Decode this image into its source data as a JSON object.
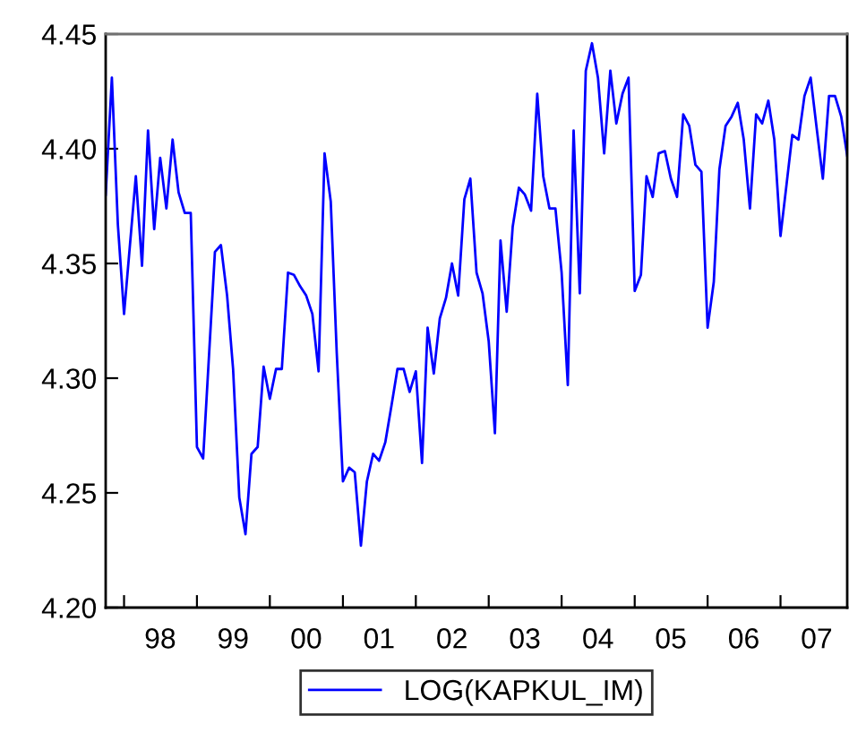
{
  "chart_data": {
    "type": "line",
    "x": [
      "1997-10",
      "1997-11",
      "1997-12",
      "1998-01",
      "1998-03",
      "1998-04",
      "1998-05",
      "1998-06",
      "1998-07",
      "1998-08",
      "1998-09",
      "1998-10",
      "1998-11",
      "1998-12",
      "1999-01",
      "1999-02",
      "1999-04",
      "1999-05",
      "1999-06",
      "1999-07",
      "1999-08",
      "1999-09",
      "1999-10",
      "1999-11",
      "1999-12",
      "2000-01",
      "2000-02",
      "2000-03",
      "2000-04",
      "2000-05",
      "2000-06",
      "2000-07",
      "2000-08",
      "2000-09",
      "2000-10",
      "2000-11",
      "2000-12",
      "2001-01",
      "2001-02",
      "2001-03",
      "2001-04",
      "2001-05",
      "2001-06",
      "2001-07",
      "2001-08",
      "2001-09",
      "2001-10",
      "2001-11",
      "2001-12",
      "2002-01",
      "2002-02",
      "2002-03",
      "2002-04",
      "2002-05",
      "2002-06",
      "2002-07",
      "2002-08",
      "2002-09",
      "2002-10",
      "2002-11",
      "2002-12",
      "2003-01",
      "2003-02",
      "2003-03",
      "2003-04",
      "2003-05",
      "2003-06",
      "2003-07",
      "2003-08",
      "2003-09",
      "2003-10",
      "2003-11",
      "2003-12",
      "2004-01",
      "2004-02",
      "2004-03",
      "2004-04",
      "2004-05",
      "2004-06",
      "2004-07",
      "2004-08",
      "2004-09",
      "2004-10",
      "2004-11",
      "2004-12",
      "2005-01",
      "2005-02",
      "2005-03",
      "2005-04",
      "2005-05",
      "2005-06",
      "2005-07",
      "2005-08",
      "2005-09",
      "2005-10",
      "2005-11",
      "2005-12",
      "2006-01",
      "2006-02",
      "2006-03",
      "2006-04",
      "2006-05",
      "2006-06",
      "2006-07",
      "2006-08",
      "2006-09",
      "2006-10",
      "2006-11",
      "2006-12",
      "2007-01",
      "2007-02",
      "2007-03",
      "2007-04",
      "2007-05",
      "2007-06",
      "2007-07",
      "2007-08",
      "2007-09",
      "2007-10",
      "2007-11",
      "2007-12"
    ],
    "series": [
      {
        "name": "LOG(KAPKUL_IM)",
        "color": "#0000ff",
        "values": [
          4.38,
          4.431,
          4.367,
          4.328,
          4.388,
          4.349,
          4.408,
          4.365,
          4.396,
          4.374,
          4.404,
          4.381,
          4.372,
          4.372,
          4.27,
          4.265,
          4.355,
          4.358,
          4.336,
          4.304,
          4.248,
          4.232,
          4.267,
          4.27,
          4.305,
          4.291,
          4.304,
          4.304,
          4.346,
          4.345,
          4.34,
          4.336,
          4.328,
          4.303,
          4.398,
          4.377,
          4.311,
          4.255,
          4.261,
          4.259,
          4.227,
          4.255,
          4.267,
          4.264,
          4.272,
          4.288,
          4.304,
          4.304,
          4.294,
          4.303,
          4.263,
          4.322,
          4.302,
          4.326,
          4.335,
          4.35,
          4.336,
          4.378,
          4.387,
          4.346,
          4.337,
          4.316,
          4.276,
          4.36,
          4.329,
          4.366,
          4.383,
          4.38,
          4.373,
          4.424,
          4.388,
          4.374,
          4.374,
          4.346,
          4.297,
          4.408,
          4.337,
          4.434,
          4.446,
          4.431,
          4.398,
          4.434,
          4.411,
          4.424,
          4.431,
          4.338,
          4.345,
          4.388,
          4.379,
          4.398,
          4.399,
          4.387,
          4.379,
          4.415,
          4.41,
          4.393,
          4.39,
          4.322,
          4.342,
          4.391,
          4.41,
          4.414,
          4.42,
          4.404,
          4.374,
          4.415,
          4.411,
          4.421,
          4.404,
          4.362,
          4.385,
          4.406,
          4.404,
          4.423,
          4.431,
          4.409,
          4.387,
          4.423,
          4.423,
          4.414,
          4.397
        ]
      }
    ],
    "xlim": [
      "1997-10",
      "2007-12"
    ],
    "xticks": [
      {
        "value": "1998-01",
        "label": null
      },
      {
        "value": "1998-07",
        "label": "98"
      },
      {
        "value": "1999-01",
        "label": null
      },
      {
        "value": "1999-07",
        "label": "99"
      },
      {
        "value": "2000-01",
        "label": null
      },
      {
        "value": "2000-07",
        "label": "00"
      },
      {
        "value": "2001-01",
        "label": null
      },
      {
        "value": "2001-07",
        "label": "01"
      },
      {
        "value": "2002-01",
        "label": null
      },
      {
        "value": "2002-07",
        "label": "02"
      },
      {
        "value": "2003-01",
        "label": null
      },
      {
        "value": "2003-07",
        "label": "03"
      },
      {
        "value": "2004-01",
        "label": null
      },
      {
        "value": "2004-07",
        "label": "04"
      },
      {
        "value": "2005-01",
        "label": null
      },
      {
        "value": "2005-07",
        "label": "05"
      },
      {
        "value": "2006-01",
        "label": null
      },
      {
        "value": "2006-07",
        "label": "06"
      },
      {
        "value": "2007-01",
        "label": null
      },
      {
        "value": "2007-07",
        "label": "07"
      }
    ],
    "ylim": [
      4.2,
      4.45
    ],
    "yticks": [
      {
        "value": 4.2,
        "label": "4.20"
      },
      {
        "value": 4.25,
        "label": "4.25"
      },
      {
        "value": 4.3,
        "label": "4.30"
      },
      {
        "value": 4.35,
        "label": "4.35"
      },
      {
        "value": 4.4,
        "label": "4.40"
      },
      {
        "value": 4.45,
        "label": "4.45"
      }
    ],
    "grid": false,
    "legend": "bottom",
    "marker": "none",
    "line_style": "solid"
  }
}
